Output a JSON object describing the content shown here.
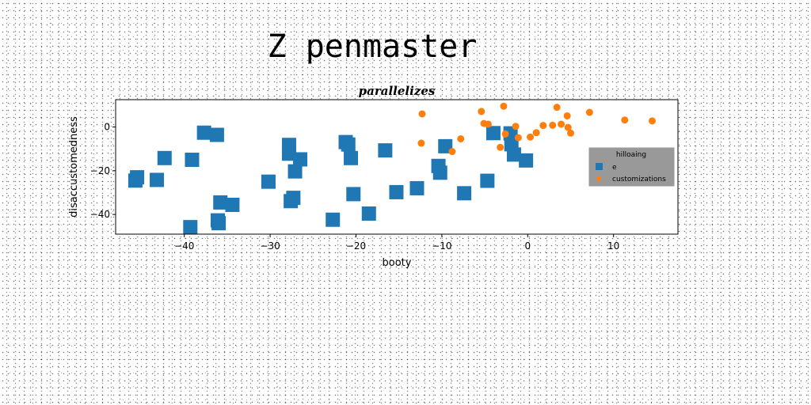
{
  "page": {
    "title": "Z penmaster"
  },
  "chart_data": {
    "type": "scatter",
    "title": "parallelizes",
    "xlabel": "booty",
    "ylabel": "disaccustomedness",
    "xlim": [
      -48,
      17.5
    ],
    "ylim": [
      -49,
      12.5
    ],
    "xticks": [
      -40,
      -30,
      -20,
      -10,
      0,
      10
    ],
    "yticks": [
      0,
      -20,
      -40
    ],
    "grid": false,
    "legend": {
      "title": "hilloaing",
      "placement": "right"
    },
    "series": [
      {
        "name": "e",
        "marker": "square",
        "color": "#1f77b4",
        "points": [
          [
            -45.7,
            -24.5
          ],
          [
            -45.5,
            -23.0
          ],
          [
            -42.3,
            -14.2
          ],
          [
            -43.2,
            -24.2
          ],
          [
            -39.1,
            -15.0
          ],
          [
            -37.7,
            -2.6
          ],
          [
            -36.2,
            -3.6
          ],
          [
            -39.3,
            -45.8
          ],
          [
            -36.1,
            -42.7
          ],
          [
            -36.0,
            -44.0
          ],
          [
            -35.8,
            -34.5
          ],
          [
            -34.4,
            -35.6
          ],
          [
            -30.2,
            -25.0
          ],
          [
            -27.8,
            -8.2
          ],
          [
            -27.8,
            -12.2
          ],
          [
            -26.5,
            -14.8
          ],
          [
            -27.1,
            -20.3
          ],
          [
            -27.3,
            -32.4
          ],
          [
            -27.6,
            -33.9
          ],
          [
            -22.7,
            -42.4
          ],
          [
            -21.2,
            -6.9
          ],
          [
            -20.9,
            -8.0
          ],
          [
            -20.6,
            -14.2
          ],
          [
            -20.3,
            -30.7
          ],
          [
            -18.5,
            -39.6
          ],
          [
            -16.6,
            -10.7
          ],
          [
            -15.3,
            -29.8
          ],
          [
            -12.9,
            -28.0
          ],
          [
            -10.4,
            -17.8
          ],
          [
            -10.2,
            -20.9
          ],
          [
            -9.6,
            -8.8
          ],
          [
            -7.4,
            -30.3
          ],
          [
            -4.7,
            -24.6
          ],
          [
            -4.0,
            -2.8
          ],
          [
            -2.0,
            -2.9
          ],
          [
            -1.9,
            -7.9
          ],
          [
            -1.6,
            -12.6
          ],
          [
            -0.2,
            -15.3
          ]
        ]
      },
      {
        "name": "customizations",
        "marker": "circle",
        "color": "#ff7f0e",
        "points": [
          [
            -12.3,
            6.0
          ],
          [
            -12.4,
            -7.4
          ],
          [
            -8.8,
            -11.2
          ],
          [
            -7.8,
            -5.4
          ],
          [
            -5.4,
            7.1
          ],
          [
            -5.1,
            1.6
          ],
          [
            -4.6,
            1.3
          ],
          [
            -3.2,
            -9.3
          ],
          [
            -2.8,
            9.5
          ],
          [
            -2.6,
            -3.2
          ],
          [
            -1.4,
            0.3
          ],
          [
            -1.1,
            -4.9
          ],
          [
            0.3,
            -4.6
          ],
          [
            1.0,
            -2.6
          ],
          [
            1.8,
            0.7
          ],
          [
            2.9,
            0.8
          ],
          [
            3.4,
            9.0
          ],
          [
            3.9,
            1.3
          ],
          [
            4.6,
            5.1
          ],
          [
            4.7,
            -0.2
          ],
          [
            5.0,
            -2.8
          ],
          [
            7.2,
            6.7
          ],
          [
            11.3,
            3.2
          ],
          [
            14.5,
            2.8
          ]
        ]
      }
    ]
  }
}
